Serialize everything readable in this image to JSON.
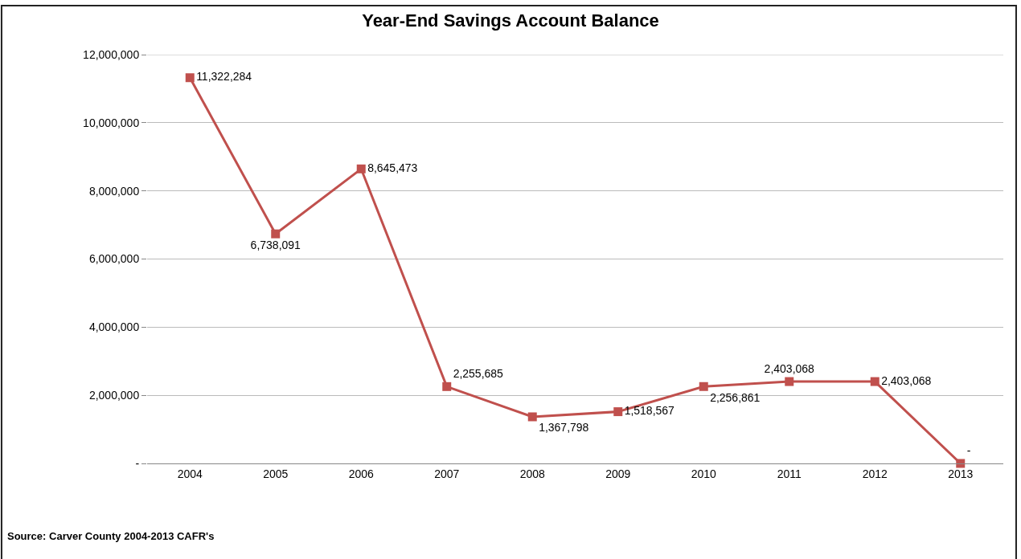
{
  "chart_data": {
    "type": "line",
    "title": "Year-End Savings Account Balance",
    "categories": [
      "2004",
      "2005",
      "2006",
      "2007",
      "2008",
      "2009",
      "2010",
      "2011",
      "2012",
      "2013"
    ],
    "series": [
      {
        "color": "#c0504d",
        "values": [
          11322284,
          6738091,
          8645473,
          2255685,
          1367798,
          1518567,
          2256861,
          2403068,
          2403068,
          0
        ],
        "value_labels": [
          "11,322,284",
          "6,738,091",
          "8,645,473",
          "2,255,685",
          "1,367,798",
          "1,518,567",
          "2,256,861",
          "2,403,068",
          "2,403,068",
          "-"
        ]
      }
    ],
    "ylim": [
      0,
      12000000
    ],
    "yticks": [
      {
        "value": 0,
        "label": "-"
      },
      {
        "value": 2000000,
        "label": "2,000,000"
      },
      {
        "value": 4000000,
        "label": "4,000,000"
      },
      {
        "value": 6000000,
        "label": "6,000,000"
      },
      {
        "value": 8000000,
        "label": "8,000,000"
      },
      {
        "value": 10000000,
        "label": "10,000,000"
      },
      {
        "value": 12000000,
        "label": "12,000,000"
      }
    ],
    "grid": "y",
    "marker": "square",
    "line_style": "solid",
    "annotations": [
      "Source: Carver County 2004-2013 CAFR's"
    ]
  }
}
